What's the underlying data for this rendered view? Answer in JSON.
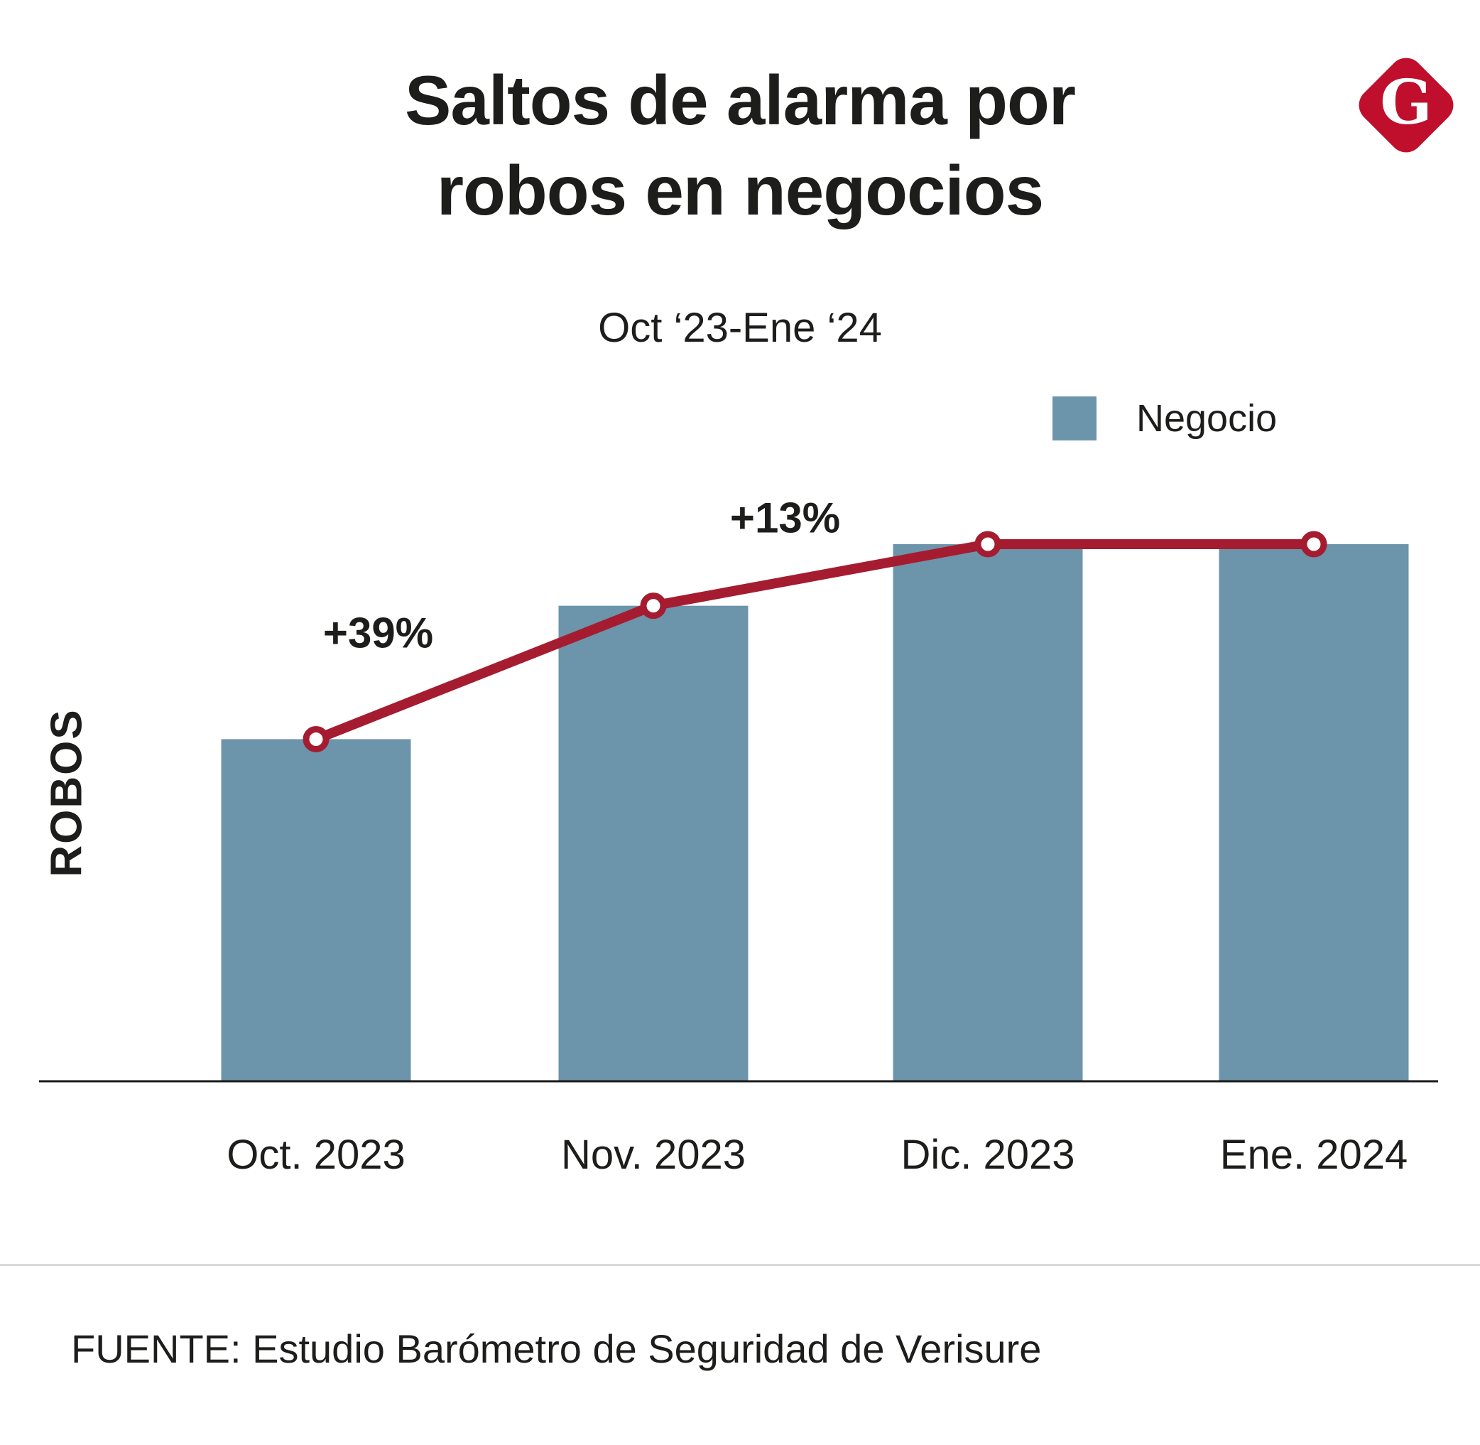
{
  "header": {
    "title_line1": "Saltos de alarma por",
    "title_line2": "robos en negocios",
    "subtitle": "Oct ‘23-Ene ‘24",
    "logo_letter": "G"
  },
  "legend": {
    "label": "Negocio"
  },
  "ylabel": "ROBOS",
  "source": "FUENTE: Estudio Barómetro de Seguridad de Verisure",
  "colors": {
    "bar": "#6c94aa",
    "line": "#a51c30",
    "logo": "#c00f2d",
    "text": "#1d1d1b"
  },
  "chart_data": {
    "type": "bar",
    "categories": [
      "Oct. 2023",
      "Nov. 2023",
      "Dic. 2023",
      "Ene. 2024"
    ],
    "series": [
      {
        "name": "Negocio",
        "values": [
          100,
          139,
          157,
          157
        ]
      }
    ],
    "line_overlay": {
      "series": "Negocio",
      "values": [
        100,
        139,
        157,
        157
      ],
      "color": "#a51c30",
      "marker": "open-circle"
    },
    "annotations": [
      {
        "label": "+39%",
        "between": [
          "Oct. 2023",
          "Nov. 2023"
        ]
      },
      {
        "label": "+13%",
        "between": [
          "Nov. 2023",
          "Dic. 2023"
        ]
      }
    ],
    "title": "Saltos de alarma por robos en negocios",
    "subtitle": "Oct ‘23-Ene ‘24",
    "xlabel": "",
    "ylabel": "ROBOS",
    "value_axis_labels_visible": false,
    "grid": false,
    "legend_position": "top-right",
    "note": "values are an index relative to Oct. 2023 = 100; Nov is +39% vs Oct, Dic is +13% vs Nov, Ene flat vs Dic"
  }
}
